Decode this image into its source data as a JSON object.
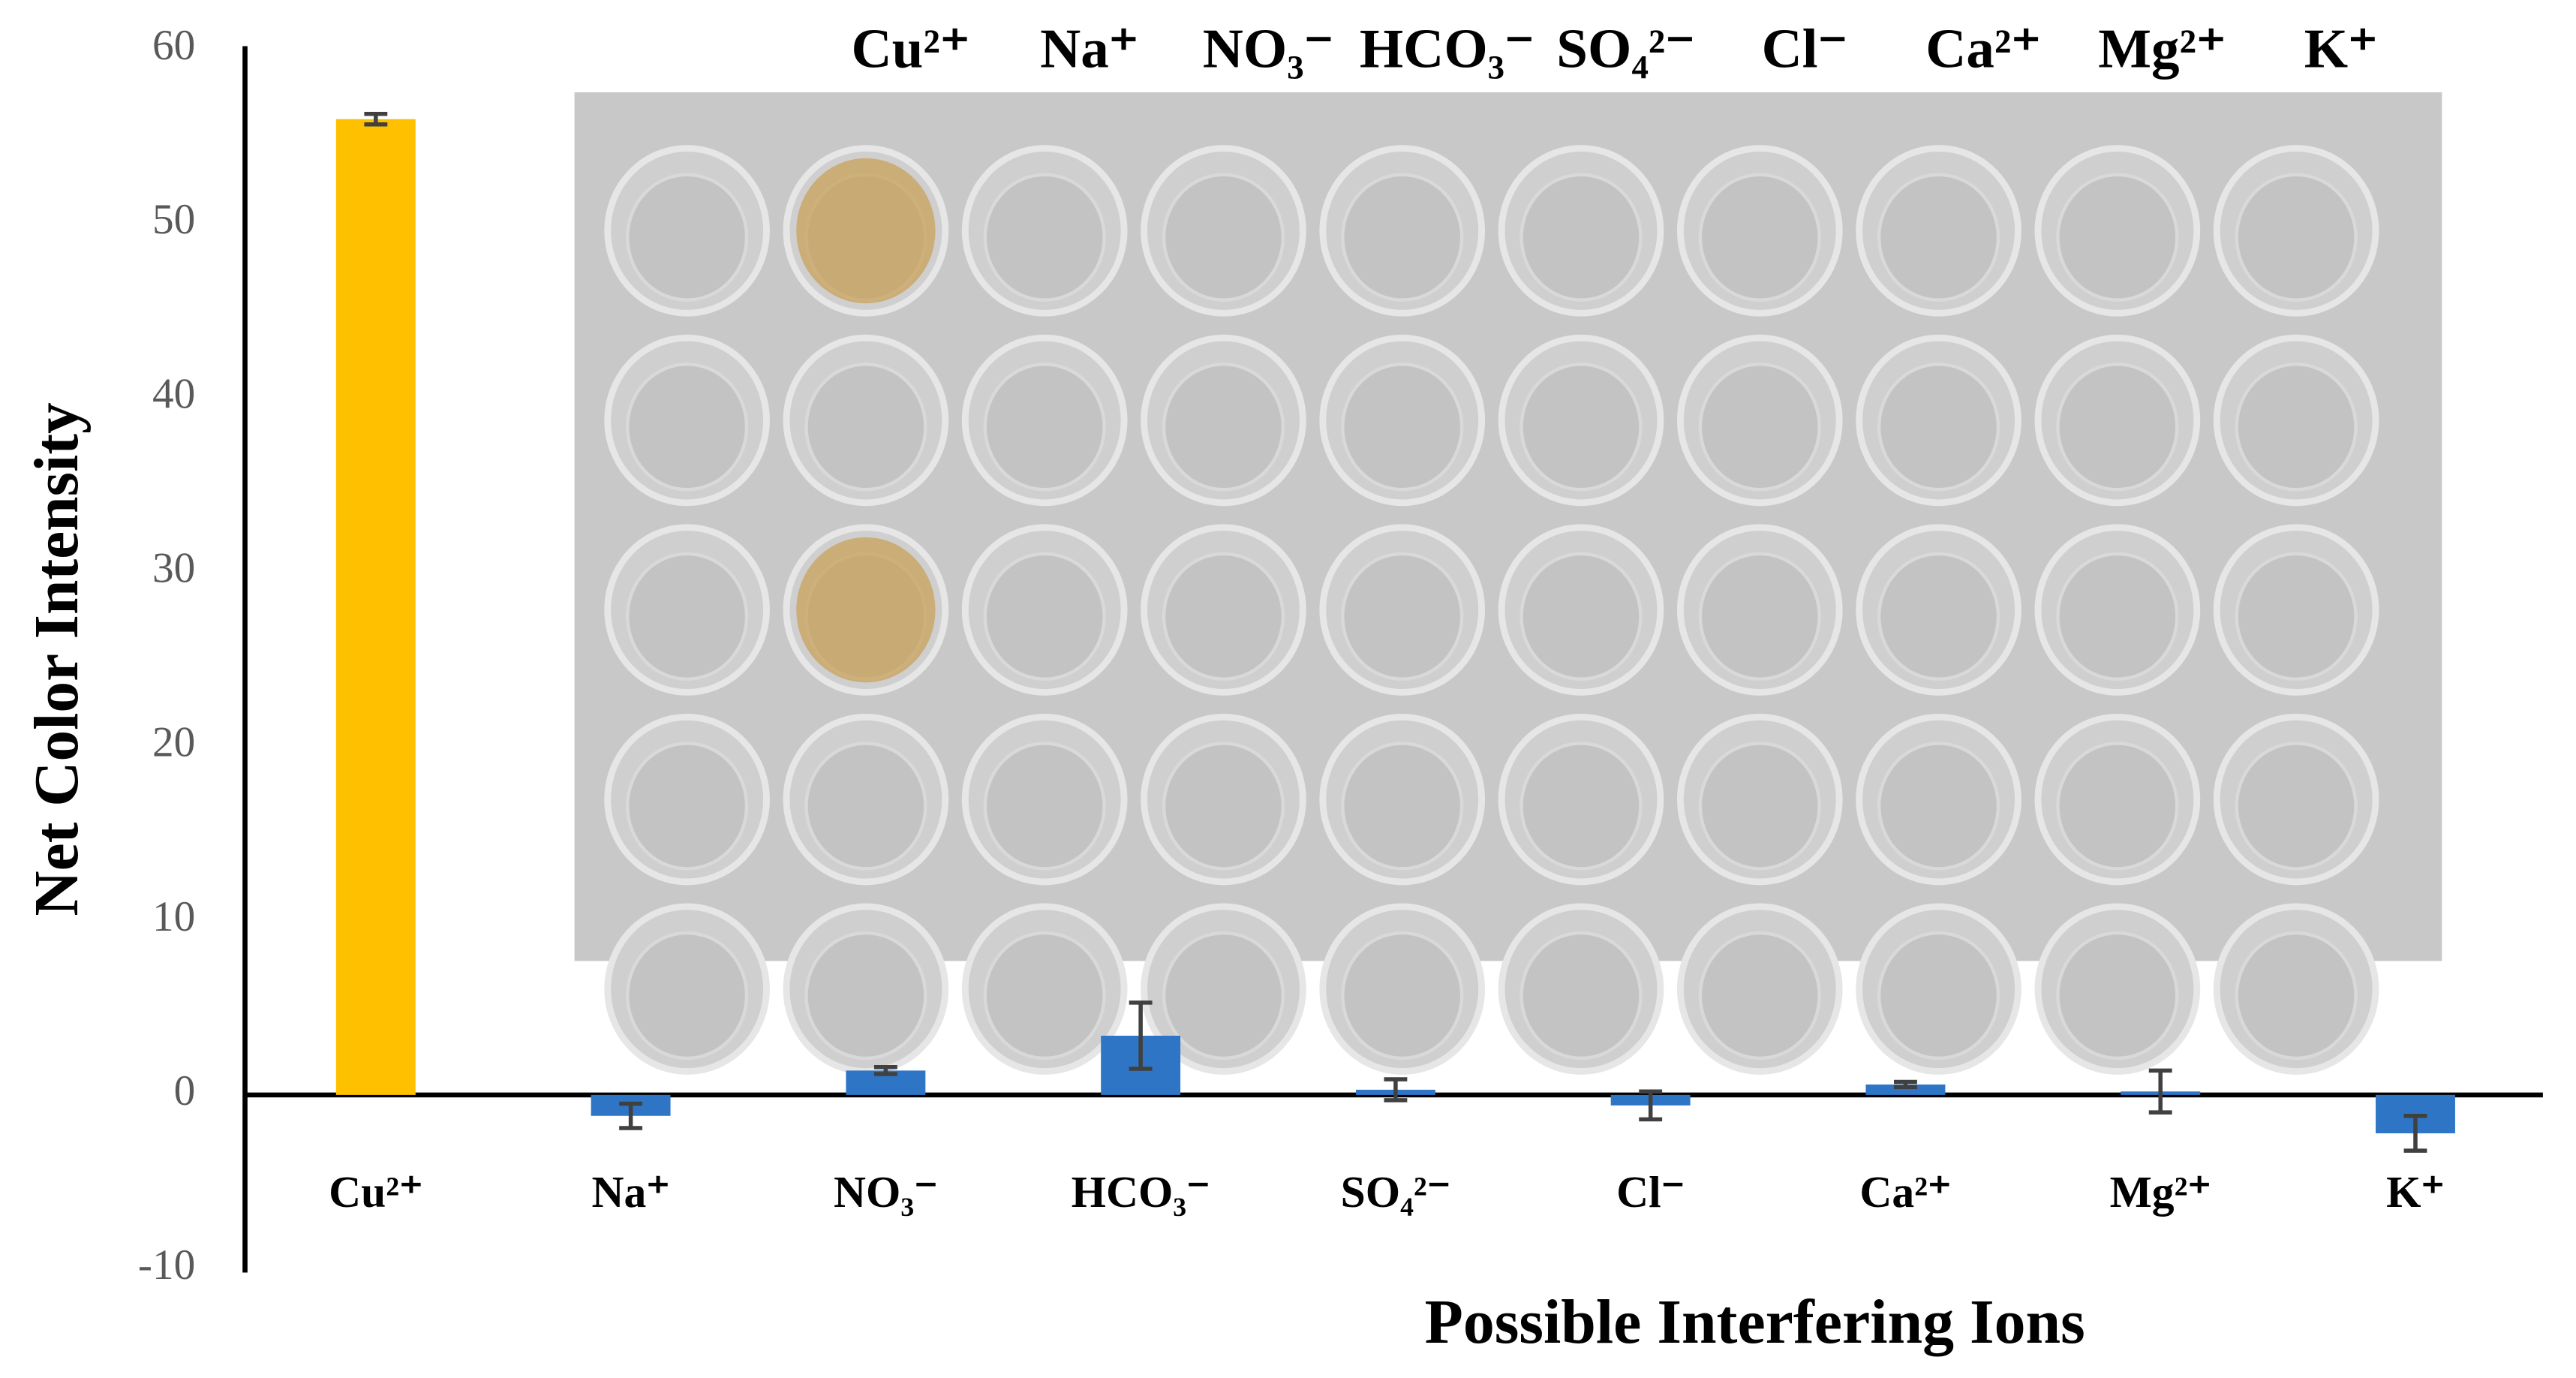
{
  "chart_data": {
    "type": "bar",
    "categories": [
      "Cu²⁺",
      "Na⁺",
      "NO₃⁻",
      "HCO₃⁻",
      "SO₄²⁻",
      "Cl⁻",
      "Ca²⁺",
      "Mg²⁺",
      "K⁺"
    ],
    "values": [
      56,
      -1.2,
      1.4,
      3.4,
      0.3,
      -0.6,
      0.6,
      0.2,
      -2.2
    ],
    "errors": [
      0.3,
      0.7,
      0.2,
      1.9,
      0.6,
      0.8,
      0.15,
      1.2,
      1.0
    ],
    "colors": [
      "#ffc000",
      "#2e75c6",
      "#2e75c6",
      "#2e75c6",
      "#2e75c6",
      "#2e75c6",
      "#2e75c6",
      "#2e75c6",
      "#2e75c6"
    ],
    "xlabel": "Possible Interfering Ions",
    "ylabel": "Net Color Intensity",
    "ylim": [
      -10,
      60
    ],
    "yticks": [
      -10,
      0,
      10,
      20,
      30,
      40,
      50,
      60
    ]
  }
}
